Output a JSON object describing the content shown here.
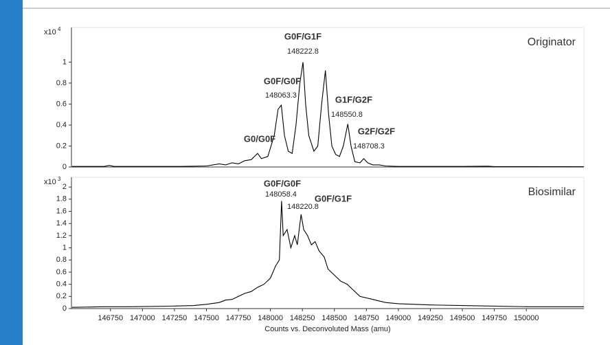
{
  "chart_data": [
    {
      "type": "line",
      "title": "Originator",
      "y_scale_label": "x10",
      "y_scale_exponent": "4",
      "color": "#000000",
      "xlim": [
        146445,
        150450
      ],
      "ylim": [
        0,
        1.33
      ],
      "yticks": [
        0,
        0.2,
        0.4,
        0.6,
        0.8,
        1
      ],
      "x": [
        146450,
        146700,
        146740,
        146780,
        147000,
        147300,
        147500,
        147600,
        147650,
        147700,
        147750,
        147800,
        147850,
        147900,
        147930,
        147980,
        148030,
        148060,
        148085,
        148110,
        148140,
        148170,
        148200,
        148230,
        148255,
        148275,
        148300,
        148340,
        148370,
        148400,
        148430,
        148455,
        148480,
        148510,
        148540,
        148570,
        148605,
        148630,
        148660,
        148700,
        148730,
        148760,
        148800,
        148850,
        148900,
        149000,
        149500,
        149700,
        149750,
        150450
      ],
      "values": [
        0.005,
        0.005,
        0.015,
        0.005,
        0.005,
        0.005,
        0.01,
        0.03,
        0.02,
        0.04,
        0.03,
        0.06,
        0.07,
        0.13,
        0.08,
        0.1,
        0.3,
        0.55,
        0.59,
        0.3,
        0.15,
        0.13,
        0.4,
        0.8,
        1.0,
        0.6,
        0.3,
        0.15,
        0.2,
        0.6,
        0.92,
        0.5,
        0.2,
        0.12,
        0.1,
        0.2,
        0.41,
        0.2,
        0.05,
        0.04,
        0.08,
        0.04,
        0.02,
        0.02,
        0.01,
        0.005,
        0.005,
        0.008,
        0.004,
        0.003
      ],
      "annotations": [
        {
          "label": "G0F/G1F",
          "mass": "148222.8"
        },
        {
          "label": "G0F/G0F",
          "mass": "148063.3"
        },
        {
          "label": "G1F/G2F",
          "mass": "148550.8"
        },
        {
          "label": "G0/G0F"
        },
        {
          "label": "G2F/G2F",
          "mass": "148708.3"
        }
      ]
    },
    {
      "type": "line",
      "title": "Biosimilar",
      "y_scale_label": "x10",
      "y_scale_exponent": "3",
      "color": "#000000",
      "xlabel": "Counts vs. Deconvoluted Mass (amu)",
      "xlim": [
        146445,
        150450
      ],
      "ylim": [
        0,
        2.16
      ],
      "yticks": [
        0,
        0.2,
        0.4,
        0.6,
        0.8,
        1,
        1.2,
        1.4,
        1.6,
        1.8,
        2
      ],
      "xticks": [
        146750,
        147000,
        147250,
        147500,
        147750,
        148000,
        148250,
        148500,
        148750,
        149000,
        149250,
        149500,
        149750,
        150000
      ],
      "x": [
        146450,
        146700,
        146900,
        147200,
        147400,
        147500,
        147600,
        147650,
        147700,
        147750,
        147800,
        147850,
        147900,
        147950,
        148000,
        148040,
        148070,
        148087,
        148100,
        148130,
        148160,
        148190,
        148210,
        148240,
        148260,
        148290,
        148320,
        148350,
        148380,
        148420,
        148450,
        148500,
        148550,
        148600,
        148650,
        148700,
        148800,
        148900,
        149000,
        149250,
        149500,
        150000,
        150450
      ],
      "values": [
        0.02,
        0.03,
        0.03,
        0.04,
        0.05,
        0.07,
        0.1,
        0.14,
        0.15,
        0.2,
        0.25,
        0.28,
        0.35,
        0.4,
        0.5,
        0.7,
        0.8,
        1.77,
        1.2,
        1.3,
        1.0,
        1.2,
        1.05,
        1.55,
        1.3,
        1.2,
        1.05,
        1.1,
        0.95,
        0.85,
        0.65,
        0.55,
        0.45,
        0.4,
        0.3,
        0.2,
        0.15,
        0.1,
        0.08,
        0.06,
        0.05,
        0.03,
        0.03
      ],
      "annotations": [
        {
          "label": "G0F/G0F",
          "mass": "148058.4"
        },
        {
          "label": "G0F/G1F",
          "mass": "148220.8"
        }
      ]
    }
  ]
}
